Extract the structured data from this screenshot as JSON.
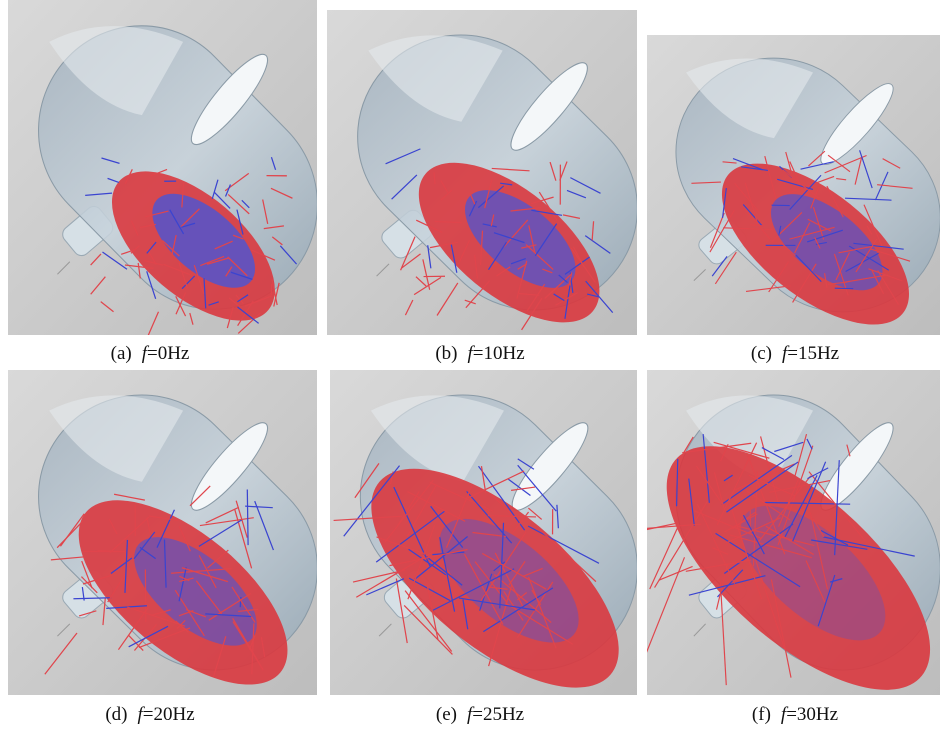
{
  "figure": {
    "panels": [
      {
        "label": "(a)",
        "variable": "f",
        "rest": "=0Hz"
      },
      {
        "label": "(b)",
        "variable": "f",
        "rest": "=10Hz"
      },
      {
        "label": "(c)",
        "variable": "f",
        "rest": "=15Hz"
      },
      {
        "label": "(d)",
        "variable": "f",
        "rest": "=20Hz"
      },
      {
        "label": "(e)",
        "variable": "f",
        "rest": "=25Hz"
      },
      {
        "label": "(f)",
        "variable": "f",
        "rest": "=30Hz"
      }
    ]
  }
}
